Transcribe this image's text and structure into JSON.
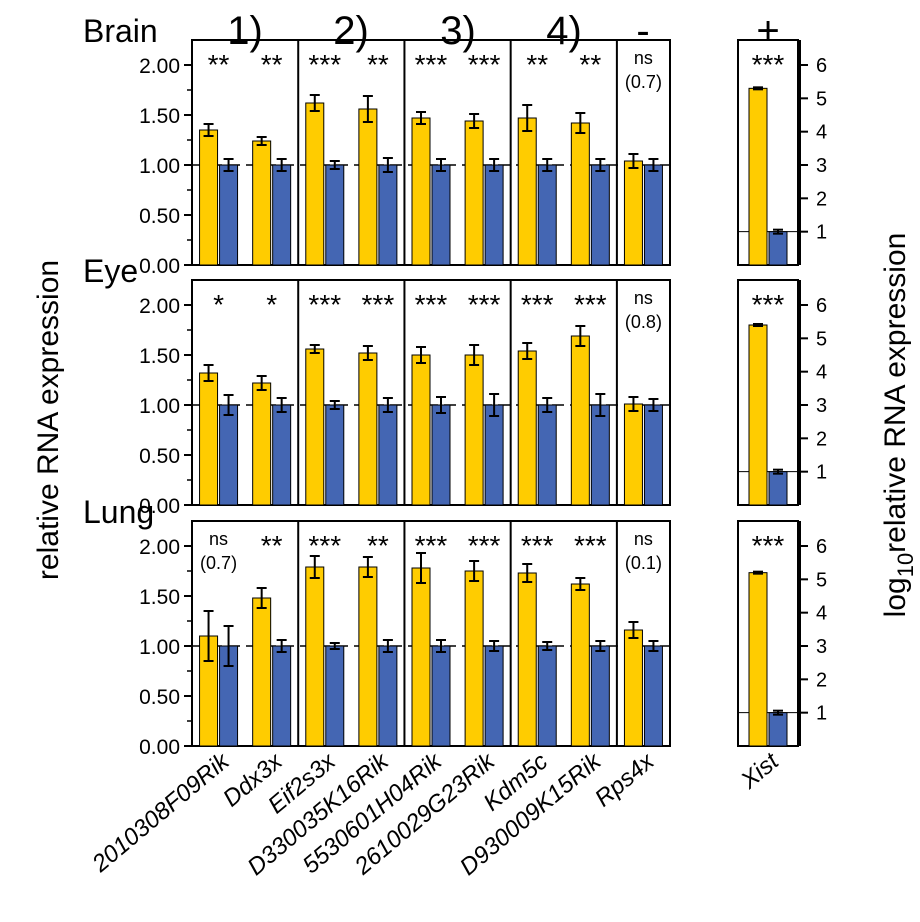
{
  "chart_data": {
    "type": "bar",
    "ylabel_left": "relative RNA expression",
    "ylabel_right_prefix": "log",
    "ylabel_right_sub": "10",
    "ylabel_right_suffix": "relative RNA expression",
    "ylim_left": [
      0,
      2.25
    ],
    "yticks_left": [
      "0.00",
      "0.50",
      "1.00",
      "1.50",
      "2.00"
    ],
    "ylim_right": [
      0,
      6.75
    ],
    "yticks_right": [
      "1",
      "2",
      "3",
      "4",
      "5",
      "6"
    ],
    "reference_line": 1.0,
    "colors": {
      "yellow": "#FFCC00",
      "blue": "#4466B3"
    },
    "groups": [
      {
        "label": "1)",
        "genes": [
          0,
          1
        ]
      },
      {
        "label": "2)",
        "genes": [
          2,
          3
        ]
      },
      {
        "label": "3)",
        "genes": [
          4,
          5
        ]
      },
      {
        "label": "4)",
        "genes": [
          6,
          7
        ]
      },
      {
        "label": "-",
        "genes": [
          8
        ]
      },
      {
        "label": "+",
        "genes": [
          9
        ]
      }
    ],
    "genes": [
      "2010308F09Rik",
      "Ddx3x",
      "Eif2s3x",
      "D330035K16Rik",
      "5530601H04Rik",
      "2610029G23Rik",
      "Kdm5c",
      "D930009K15Rik",
      "Rps4x",
      "Xist"
    ],
    "panels": [
      {
        "tissue": "Brain",
        "yellow": [
          1.35,
          1.24,
          1.62,
          1.56,
          1.47,
          1.44,
          1.47,
          1.42,
          1.04
        ],
        "yellow_err": [
          0.06,
          0.04,
          0.08,
          0.13,
          0.06,
          0.07,
          0.13,
          0.1,
          0.07
        ],
        "blue": [
          1.0,
          1.0,
          1.0,
          1.0,
          1.0,
          1.0,
          1.0,
          1.0,
          1.0
        ],
        "blue_err": [
          0.06,
          0.06,
          0.04,
          0.07,
          0.06,
          0.06,
          0.06,
          0.06,
          0.06
        ],
        "sig": [
          "**",
          "**",
          "***",
          "**",
          "***",
          "***",
          "**",
          "**",
          "ns"
        ],
        "sig_sub": [
          "",
          "",
          "",
          "",
          "",
          "",
          "",
          "",
          "(0.7)"
        ],
        "xist_yellow": 5.3,
        "xist_yellow_err": 0.03,
        "xist_blue": 1.0,
        "xist_blue_err": 0.06,
        "xist_sig": "***"
      },
      {
        "tissue": "Eye",
        "yellow": [
          1.32,
          1.22,
          1.56,
          1.52,
          1.5,
          1.5,
          1.54,
          1.69,
          1.01
        ],
        "yellow_err": [
          0.08,
          0.07,
          0.04,
          0.07,
          0.08,
          0.1,
          0.08,
          0.1,
          0.07
        ],
        "blue": [
          1.0,
          1.0,
          1.0,
          1.0,
          1.0,
          1.0,
          1.0,
          1.0,
          1.0
        ],
        "blue_err": [
          0.1,
          0.07,
          0.04,
          0.07,
          0.08,
          0.11,
          0.07,
          0.11,
          0.06
        ],
        "sig": [
          "*",
          "*",
          "***",
          "***",
          "***",
          "***",
          "***",
          "***",
          "ns"
        ],
        "sig_sub": [
          "",
          "",
          "",
          "",
          "",
          "",
          "",
          "",
          "(0.8)"
        ],
        "xist_yellow": 5.4,
        "xist_yellow_err": 0.03,
        "xist_blue": 1.0,
        "xist_blue_err": 0.06,
        "xist_sig": "***"
      },
      {
        "tissue": "Lung",
        "yellow": [
          1.1,
          1.48,
          1.79,
          1.79,
          1.78,
          1.75,
          1.73,
          1.62,
          1.16
        ],
        "yellow_err": [
          0.25,
          0.1,
          0.11,
          0.1,
          0.15,
          0.1,
          0.09,
          0.06,
          0.08
        ],
        "blue": [
          1.0,
          1.0,
          1.0,
          1.0,
          1.0,
          1.0,
          1.0,
          1.0,
          1.0
        ],
        "blue_err": [
          0.2,
          0.06,
          0.03,
          0.06,
          0.06,
          0.05,
          0.04,
          0.05,
          0.05
        ],
        "sig": [
          "ns",
          "**",
          "***",
          "**",
          "***",
          "***",
          "***",
          "***",
          "ns"
        ],
        "sig_sub": [
          "(0.7)",
          "",
          "",
          "",
          "",
          "",
          "",
          "",
          "(0.1)"
        ],
        "xist_yellow": 5.2,
        "xist_yellow_err": 0.03,
        "xist_blue": 1.0,
        "xist_blue_err": 0.06,
        "xist_sig": "***"
      }
    ]
  }
}
